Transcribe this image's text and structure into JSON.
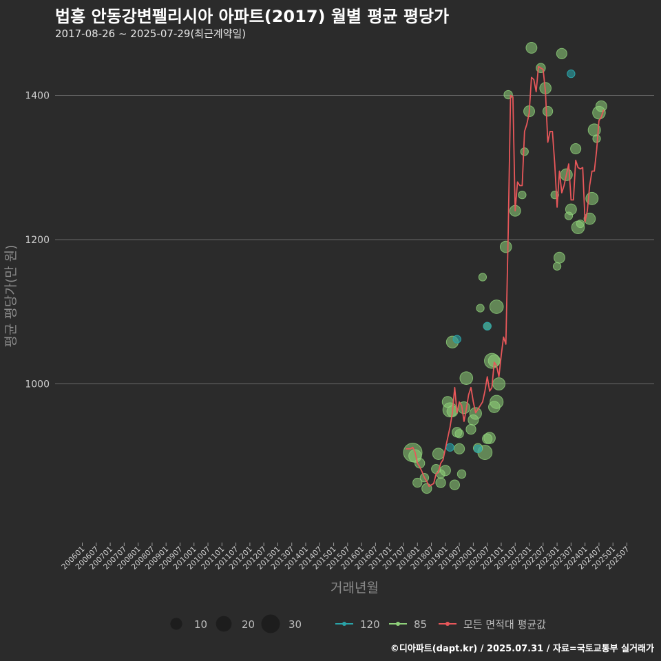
{
  "header": {
    "title": "법흥 안동강변펠리시아 아파트(2017) 월별 평균 평당가",
    "subtitle": "2017-08-26 ~ 2025-07-29(최근계약일)"
  },
  "footer": {
    "credit": "©디아파트(dapt.kr) / 2025.07.31 / 자료=국토교통부 실거래가"
  },
  "colors": {
    "background": "#2b2b2b",
    "grid": "#6a6a6a",
    "line": "#e8575a",
    "dot85": "#8fd17a",
    "dot120": "#2aa3a8"
  },
  "chart_data": {
    "type": "line",
    "title": "법흥 안동강변펠리시아 아파트(2017) 월별 평균 평당가",
    "xlabel": "거래년월",
    "ylabel": "평균 평당가(만 원)",
    "ylim": [
      780,
      1475
    ],
    "yticks": [
      1000,
      1200,
      1400
    ],
    "xticks": [
      "200601",
      "200607",
      "200701",
      "200707",
      "200801",
      "200807",
      "200901",
      "200907",
      "201001",
      "201007",
      "201101",
      "201107",
      "201201",
      "201207",
      "201301",
      "201307",
      "201401",
      "201407",
      "201501",
      "201507",
      "201601",
      "201607",
      "201701",
      "201707",
      "201801",
      "201807",
      "201901",
      "201907",
      "202001",
      "202007",
      "202101",
      "202107",
      "202201",
      "202207",
      "202301",
      "202307",
      "202401",
      "202407",
      "202501",
      "202507"
    ],
    "legend": {
      "size_items": [
        {
          "label": "10",
          "value": 10
        },
        {
          "label": "20",
          "value": 20
        },
        {
          "label": "30",
          "value": 30
        }
      ],
      "series_items": [
        {
          "label": "120",
          "type": "area120"
        },
        {
          "label": "85",
          "type": "area85"
        },
        {
          "label": "모든 면적대 평균값",
          "type": "avg"
        }
      ]
    },
    "avg_series": [
      {
        "x": "201708",
        "y": 910
      },
      {
        "x": "201709",
        "y": 910
      },
      {
        "x": "201710",
        "y": 910
      },
      {
        "x": "201711",
        "y": 912
      },
      {
        "x": "201712",
        "y": 905
      },
      {
        "x": "201801",
        "y": 890
      },
      {
        "x": "201802",
        "y": 885
      },
      {
        "x": "201803",
        "y": 878
      },
      {
        "x": "201804",
        "y": 870
      },
      {
        "x": "201805",
        "y": 865
      },
      {
        "x": "201806",
        "y": 858
      },
      {
        "x": "201807",
        "y": 860
      },
      {
        "x": "201808",
        "y": 862
      },
      {
        "x": "201809",
        "y": 875
      },
      {
        "x": "201810",
        "y": 878
      },
      {
        "x": "201811",
        "y": 890
      },
      {
        "x": "201812",
        "y": 895
      },
      {
        "x": "201901",
        "y": 910
      },
      {
        "x": "201902",
        "y": 925
      },
      {
        "x": "201903",
        "y": 940
      },
      {
        "x": "201904",
        "y": 960
      },
      {
        "x": "201905",
        "y": 995
      },
      {
        "x": "201906",
        "y": 960
      },
      {
        "x": "201907",
        "y": 975
      },
      {
        "x": "201908",
        "y": 970
      },
      {
        "x": "201909",
        "y": 948
      },
      {
        "x": "201910",
        "y": 965
      },
      {
        "x": "201911",
        "y": 985
      },
      {
        "x": "201912",
        "y": 995
      },
      {
        "x": "202001",
        "y": 975
      },
      {
        "x": "202002",
        "y": 960
      },
      {
        "x": "202003",
        "y": 965
      },
      {
        "x": "202004",
        "y": 970
      },
      {
        "x": "202005",
        "y": 975
      },
      {
        "x": "202006",
        "y": 990
      },
      {
        "x": "202007",
        "y": 1010
      },
      {
        "x": "202008",
        "y": 990
      },
      {
        "x": "202009",
        "y": 995
      },
      {
        "x": "202010",
        "y": 1030
      },
      {
        "x": "202011",
        "y": 1025
      },
      {
        "x": "202012",
        "y": 1010
      },
      {
        "x": "202101",
        "y": 1040
      },
      {
        "x": "202102",
        "y": 1065
      },
      {
        "x": "202103",
        "y": 1055
      },
      {
        "x": "202104",
        "y": 1210
      },
      {
        "x": "202105",
        "y": 1400
      },
      {
        "x": "202106",
        "y": 1398
      },
      {
        "x": "202107",
        "y": 1240
      },
      {
        "x": "202108",
        "y": 1280
      },
      {
        "x": "202109",
        "y": 1275
      },
      {
        "x": "202110",
        "y": 1275
      },
      {
        "x": "202111",
        "y": 1350
      },
      {
        "x": "202112",
        "y": 1360
      },
      {
        "x": "202201",
        "y": 1375
      },
      {
        "x": "202202",
        "y": 1425
      },
      {
        "x": "202203",
        "y": 1422
      },
      {
        "x": "202204",
        "y": 1405
      },
      {
        "x": "202205",
        "y": 1440
      },
      {
        "x": "202206",
        "y": 1438
      },
      {
        "x": "202207",
        "y": 1436
      },
      {
        "x": "202208",
        "y": 1405
      },
      {
        "x": "202209",
        "y": 1335
      },
      {
        "x": "202210",
        "y": 1350
      },
      {
        "x": "202211",
        "y": 1350
      },
      {
        "x": "202212",
        "y": 1305
      },
      {
        "x": "202301",
        "y": 1245
      },
      {
        "x": "202302",
        "y": 1295
      },
      {
        "x": "202303",
        "y": 1265
      },
      {
        "x": "202304",
        "y": 1275
      },
      {
        "x": "202305",
        "y": 1290
      },
      {
        "x": "202306",
        "y": 1305
      },
      {
        "x": "202307",
        "y": 1255
      },
      {
        "x": "202308",
        "y": 1255
      },
      {
        "x": "202309",
        "y": 1310
      },
      {
        "x": "202310",
        "y": 1300
      },
      {
        "x": "202311",
        "y": 1298
      },
      {
        "x": "202312",
        "y": 1300
      },
      {
        "x": "202401",
        "y": 1225
      },
      {
        "x": "202402",
        "y": 1240
      },
      {
        "x": "202403",
        "y": 1275
      },
      {
        "x": "202404",
        "y": 1295
      },
      {
        "x": "202405",
        "y": 1295
      },
      {
        "x": "202406",
        "y": 1325
      },
      {
        "x": "202407",
        "y": 1365
      },
      {
        "x": "202408",
        "y": 1370
      },
      {
        "x": "202409",
        "y": 1380
      }
    ],
    "dots_85": [
      {
        "x": "201711",
        "y": 905,
        "size": 30
      },
      {
        "x": "201712",
        "y": 900,
        "size": 12
      },
      {
        "x": "201802",
        "y": 890,
        "size": 6
      },
      {
        "x": "201804",
        "y": 870,
        "size": 4
      },
      {
        "x": "201805",
        "y": 855,
        "size": 6
      },
      {
        "x": "201801",
        "y": 863,
        "size": 5
      },
      {
        "x": "201810",
        "y": 903,
        "size": 9
      },
      {
        "x": "201809",
        "y": 882,
        "size": 5
      },
      {
        "x": "201811",
        "y": 863,
        "size": 6
      },
      {
        "x": "201902",
        "y": 975,
        "size": 8
      },
      {
        "x": "201903",
        "y": 964,
        "size": 16
      },
      {
        "x": "201904",
        "y": 962,
        "size": 8
      },
      {
        "x": "201906",
        "y": 933,
        "size": 6
      },
      {
        "x": "201907",
        "y": 931,
        "size": 4
      },
      {
        "x": "201909",
        "y": 967,
        "size": 10
      },
      {
        "x": "201912",
        "y": 937,
        "size": 6
      },
      {
        "x": "202001",
        "y": 950,
        "size": 7
      },
      {
        "x": "202003",
        "y": 911,
        "size": 5
      },
      {
        "x": "202006",
        "y": 905,
        "size": 16
      },
      {
        "x": "202009",
        "y": 1032,
        "size": 18
      },
      {
        "x": "202010",
        "y": 1032,
        "size": 10
      },
      {
        "x": "202012",
        "y": 1000,
        "size": 11
      },
      {
        "x": "202011",
        "y": 1107,
        "size": 14
      },
      {
        "x": "202103",
        "y": 1190,
        "size": 9
      },
      {
        "x": "202104",
        "y": 1401,
        "size": 4
      },
      {
        "x": "202107",
        "y": 1240,
        "size": 8
      },
      {
        "x": "202110",
        "y": 1262,
        "size": 3
      },
      {
        "x": "202111",
        "y": 1322,
        "size": 3
      },
      {
        "x": "202201",
        "y": 1378,
        "size": 8
      },
      {
        "x": "202202",
        "y": 1466,
        "size": 8
      },
      {
        "x": "202206",
        "y": 1438,
        "size": 5
      },
      {
        "x": "202208",
        "y": 1410,
        "size": 9
      },
      {
        "x": "202209",
        "y": 1378,
        "size": 6
      },
      {
        "x": "202212",
        "y": 1262,
        "size": 3
      },
      {
        "x": "202301",
        "y": 1163,
        "size": 3
      },
      {
        "x": "202302",
        "y": 1175,
        "size": 8
      },
      {
        "x": "202303",
        "y": 1458,
        "size": 7
      },
      {
        "x": "202305",
        "y": 1290,
        "size": 10
      },
      {
        "x": "202306",
        "y": 1233,
        "size": 3
      },
      {
        "x": "202307",
        "y": 1242,
        "size": 8
      },
      {
        "x": "202309",
        "y": 1326,
        "size": 7
      },
      {
        "x": "202310",
        "y": 1217,
        "size": 12
      },
      {
        "x": "202311",
        "y": 1222,
        "size": 3
      },
      {
        "x": "202403",
        "y": 1229,
        "size": 9
      },
      {
        "x": "202404",
        "y": 1257,
        "size": 11
      },
      {
        "x": "202405",
        "y": 1352,
        "size": 11
      },
      {
        "x": "202406",
        "y": 1340,
        "size": 3
      },
      {
        "x": "202407",
        "y": 1376,
        "size": 12
      },
      {
        "x": "202408",
        "y": 1385,
        "size": 8
      },
      {
        "x": "201904",
        "y": 1058,
        "size": 10
      },
      {
        "x": "201910",
        "y": 1008,
        "size": 12
      },
      {
        "x": "202004",
        "y": 1105,
        "size": 3
      },
      {
        "x": "201908",
        "y": 875,
        "size": 4
      },
      {
        "x": "201905",
        "y": 860,
        "size": 6
      },
      {
        "x": "202002",
        "y": 959,
        "size": 10
      },
      {
        "x": "202007",
        "y": 924,
        "size": 6
      },
      {
        "x": "202007",
        "y": 1080,
        "size": 3
      },
      {
        "x": "202005",
        "y": 1148,
        "size": 3
      },
      {
        "x": "202008",
        "y": 925,
        "size": 9
      },
      {
        "x": "202010",
        "y": 968,
        "size": 9
      },
      {
        "x": "202011",
        "y": 975,
        "size": 13
      },
      {
        "x": "201907",
        "y": 910,
        "size": 7
      },
      {
        "x": "201901",
        "y": 880,
        "size": 7
      },
      {
        "x": "201811",
        "y": 875,
        "size": 4
      }
    ],
    "dots_120": [
      {
        "x": "201906",
        "y": 1062,
        "size": 3
      },
      {
        "x": "202003",
        "y": 910,
        "size": 3
      },
      {
        "x": "202007",
        "y": 1080,
        "size": 3
      },
      {
        "x": "202307",
        "y": 1430,
        "size": 3
      },
      {
        "x": "201903",
        "y": 912,
        "size": 3
      }
    ]
  }
}
